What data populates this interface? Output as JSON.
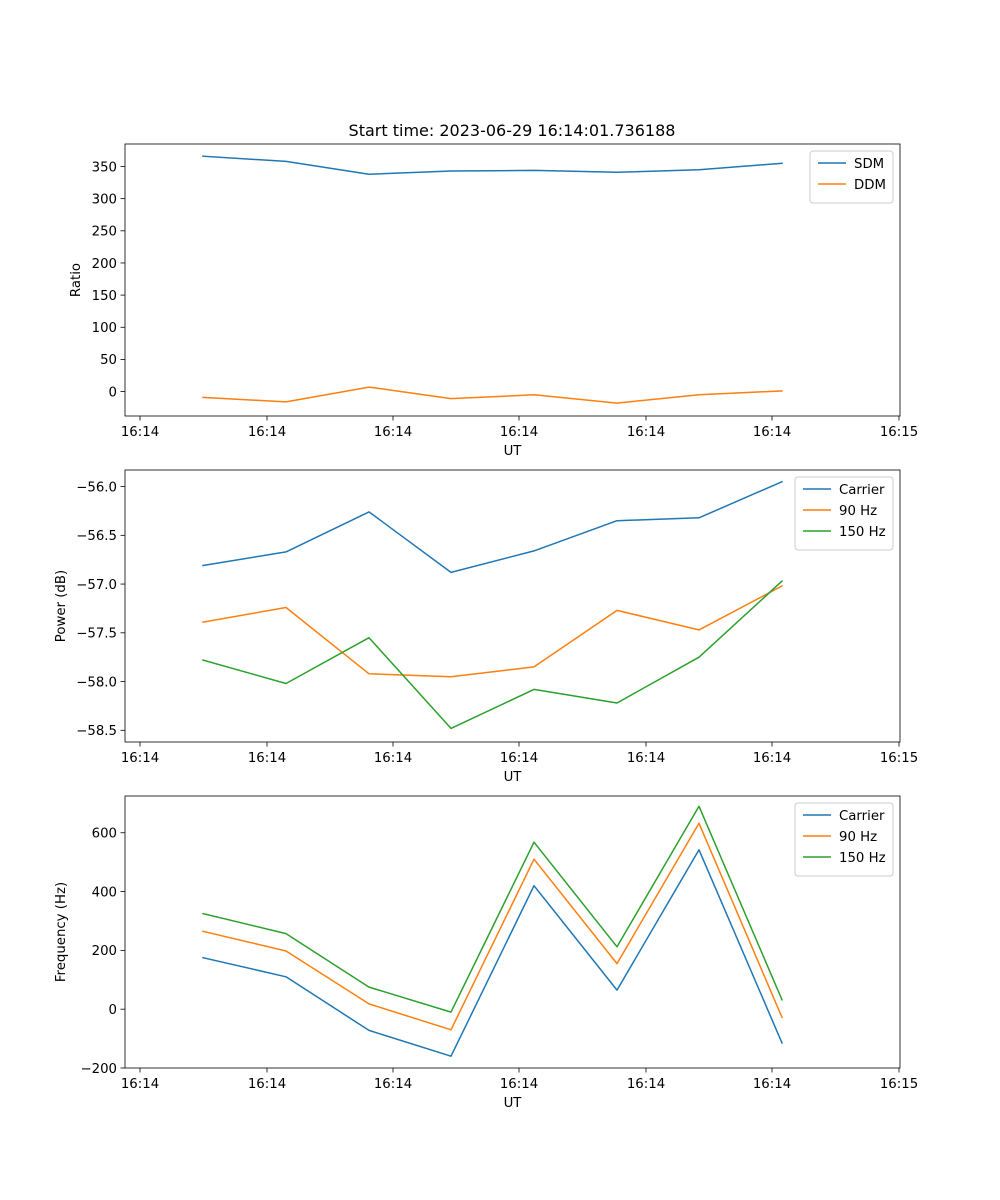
{
  "figure": {
    "title": "Start time: 2023-06-29 16:14:01.736188"
  },
  "chart_data": [
    {
      "type": "line",
      "xlabel": "UT",
      "ylabel": "Ratio",
      "x_tick_labels": [
        "16:14",
        "16:14",
        "16:14",
        "16:14",
        "16:14",
        "16:14",
        "16:15"
      ],
      "yticks": [
        0,
        50,
        100,
        150,
        200,
        250,
        300,
        350
      ],
      "ylim": [
        -38,
        385
      ],
      "grid": false,
      "legend": "upper right",
      "series": [
        {
          "name": "SDM",
          "color": "#1f77b4",
          "values": [
            366,
            358,
            338,
            343,
            344,
            341,
            345,
            355
          ]
        },
        {
          "name": "DDM",
          "color": "#ff7f0e",
          "values": [
            -9,
            -16,
            7,
            -11,
            -5,
            -18,
            -5,
            1
          ]
        }
      ]
    },
    {
      "type": "line",
      "xlabel": "UT",
      "ylabel": "Power (dB)",
      "x_tick_labels": [
        "16:14",
        "16:14",
        "16:14",
        "16:14",
        "16:14",
        "16:14",
        "16:15"
      ],
      "yticks": [
        -58.5,
        -58.0,
        -57.5,
        -57.0,
        -56.5,
        -56.0
      ],
      "ytick_labels": [
        "−58.5",
        "−58.0",
        "−57.5",
        "−57.0",
        "−56.5",
        "−56.0"
      ],
      "ylim": [
        -58.62,
        -55.83
      ],
      "grid": false,
      "legend": "upper right",
      "series": [
        {
          "name": "Carrier",
          "color": "#1f77b4",
          "values": [
            -56.81,
            -56.67,
            -56.26,
            -56.88,
            -56.66,
            -56.35,
            -56.32,
            -55.95
          ]
        },
        {
          "name": "90 Hz",
          "color": "#ff7f0e",
          "values": [
            -57.39,
            -57.24,
            -57.92,
            -57.95,
            -57.85,
            -57.27,
            -57.47,
            -57.02
          ]
        },
        {
          "name": "150 Hz",
          "color": "#2ca02c",
          "values": [
            -57.78,
            -58.02,
            -57.55,
            -58.48,
            -58.08,
            -58.22,
            -57.75,
            -56.97
          ]
        }
      ]
    },
    {
      "type": "line",
      "xlabel": "UT",
      "ylabel": "Frequency (Hz)",
      "x_tick_labels": [
        "16:14",
        "16:14",
        "16:14",
        "16:14",
        "16:14",
        "16:14",
        "16:15"
      ],
      "yticks": [
        -200,
        0,
        200,
        400,
        600
      ],
      "ytick_labels": [
        "−200",
        "0",
        "200",
        "400",
        "600"
      ],
      "ylim": [
        -200,
        725
      ],
      "grid": false,
      "legend": "upper right",
      "series": [
        {
          "name": "Carrier",
          "color": "#1f77b4",
          "values": [
            175,
            110,
            -72,
            -160,
            420,
            65,
            542,
            -115
          ]
        },
        {
          "name": "90 Hz",
          "color": "#ff7f0e",
          "values": [
            265,
            198,
            18,
            -70,
            510,
            155,
            632,
            -28
          ]
        },
        {
          "name": "150 Hz",
          "color": "#2ca02c",
          "values": [
            325,
            257,
            75,
            -10,
            568,
            212,
            690,
            32
          ]
        }
      ]
    }
  ]
}
